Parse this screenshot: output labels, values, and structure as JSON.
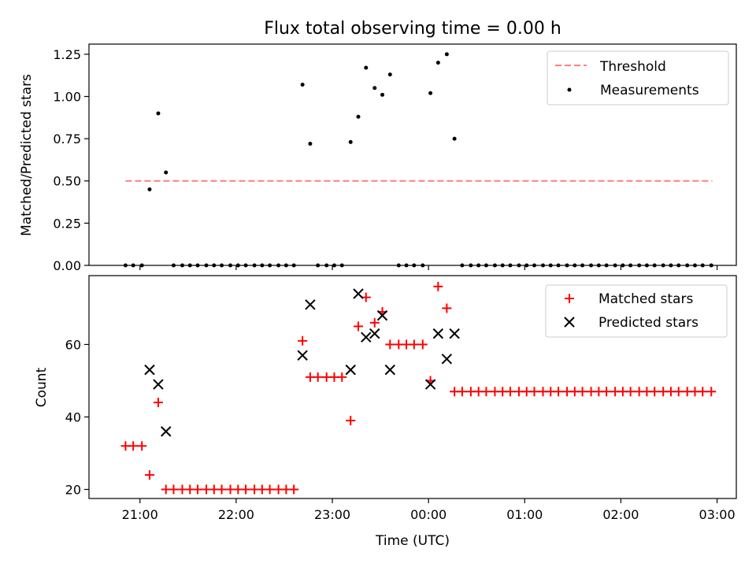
{
  "figure": {
    "title": "Flux total observing time = 0.00 h",
    "xlabel": "Time (UTC)",
    "x_tick_labels": [
      "21:00",
      "22:00",
      "23:00",
      "00:00",
      "01:00",
      "02:00",
      "03:00"
    ]
  },
  "chart_data": [
    {
      "type": "scatter",
      "panel": "top",
      "ylabel": "Matched/Predicted stars",
      "ylim": [
        0,
        1.31
      ],
      "yticks": [
        0,
        0.25,
        0.5,
        0.75,
        1.0,
        1.25
      ],
      "ytick_labels": [
        "0.00",
        "0.25",
        "0.50",
        "0.75",
        "1.00",
        "1.25"
      ],
      "xlim_hours": [
        20.47,
        27.2
      ],
      "legend_position": "top-right",
      "series": [
        {
          "name": "Threshold",
          "kind": "dashed-line",
          "color": "#ff7f7f",
          "x_hours": [
            20.85,
            26.95
          ],
          "values": [
            0.5,
            0.5
          ]
        },
        {
          "name": "Measurements",
          "kind": "point",
          "color": "#000000",
          "x_hours": [
            20.85,
            20.93,
            21.02,
            21.1,
            21.19,
            21.27,
            21.35,
            21.44,
            21.52,
            21.6,
            21.69,
            21.77,
            21.85,
            21.94,
            22.02,
            22.1,
            22.19,
            22.27,
            22.35,
            22.44,
            22.52,
            22.6,
            22.69,
            22.77,
            22.85,
            22.94,
            23.02,
            23.1,
            23.19,
            23.27,
            23.35,
            23.44,
            23.52,
            23.6,
            23.69,
            23.77,
            23.85,
            23.94,
            24.02,
            24.1,
            24.19,
            24.27,
            24.35,
            24.44,
            24.52,
            24.6,
            24.69,
            24.77,
            24.85,
            24.94,
            25.02,
            25.1,
            25.19,
            25.27,
            25.35,
            25.44,
            25.52,
            25.6,
            25.69,
            25.77,
            25.85,
            25.94,
            26.02,
            26.1,
            26.19,
            26.27,
            26.35,
            26.44,
            26.52,
            26.6,
            26.69,
            26.77,
            26.85,
            26.94
          ],
          "values": [
            0,
            0,
            0,
            0.45,
            0.9,
            0.55,
            0,
            0,
            0,
            0,
            0,
            0,
            0,
            0,
            0,
            0,
            0,
            0,
            0,
            0,
            0,
            0,
            1.07,
            0.72,
            0,
            0,
            0,
            0,
            0.73,
            0.88,
            1.17,
            1.05,
            1.01,
            1.13,
            0,
            0,
            0,
            0,
            1.02,
            1.2,
            1.25,
            0.75,
            0,
            0,
            0,
            0,
            0,
            0,
            0,
            0,
            0,
            0,
            0,
            0,
            0,
            0,
            0,
            0,
            0,
            0,
            0,
            0,
            0,
            0,
            0,
            0,
            0,
            0,
            0,
            0,
            0,
            0,
            0,
            0
          ]
        }
      ]
    },
    {
      "type": "scatter",
      "panel": "bottom",
      "ylabel": "Count",
      "ylim": [
        17.5,
        79
      ],
      "yticks": [
        20,
        40,
        60
      ],
      "ytick_labels": [
        "20",
        "40",
        "60"
      ],
      "xlim_hours": [
        20.47,
        27.2
      ],
      "legend_position": "top-right",
      "series": [
        {
          "name": "Matched stars",
          "kind": "plus",
          "color": "#ff0000",
          "x_hours": [
            20.85,
            20.93,
            21.02,
            21.1,
            21.19,
            21.27,
            21.35,
            21.44,
            21.52,
            21.6,
            21.69,
            21.77,
            21.85,
            21.94,
            22.02,
            22.1,
            22.19,
            22.27,
            22.35,
            22.44,
            22.52,
            22.6,
            22.69,
            22.77,
            22.85,
            22.94,
            23.02,
            23.1,
            23.19,
            23.27,
            23.35,
            23.44,
            23.52,
            23.6,
            23.69,
            23.77,
            23.85,
            23.94,
            24.02,
            24.1,
            24.19,
            24.27,
            24.35,
            24.44,
            24.52,
            24.6,
            24.69,
            24.77,
            24.85,
            24.94,
            25.02,
            25.1,
            25.19,
            25.27,
            25.35,
            25.44,
            25.52,
            25.6,
            25.69,
            25.77,
            25.85,
            25.94,
            26.02,
            26.1,
            26.19,
            26.27,
            26.35,
            26.44,
            26.52,
            26.6,
            26.69,
            26.77,
            26.85,
            26.94
          ],
          "values": [
            32,
            32,
            32,
            24,
            44,
            20,
            20,
            20,
            20,
            20,
            20,
            20,
            20,
            20,
            20,
            20,
            20,
            20,
            20,
            20,
            20,
            20,
            61,
            51,
            51,
            51,
            51,
            51,
            39,
            65,
            73,
            66,
            69,
            60,
            60,
            60,
            60,
            60,
            50,
            76,
            70,
            47,
            47,
            47,
            47,
            47,
            47,
            47,
            47,
            47,
            47,
            47,
            47,
            47,
            47,
            47,
            47,
            47,
            47,
            47,
            47,
            47,
            47,
            47,
            47,
            47,
            47,
            47,
            47,
            47,
            47,
            47,
            47,
            47
          ]
        },
        {
          "name": "Predicted stars",
          "kind": "x",
          "color": "#000000",
          "x_hours": [
            21.1,
            21.19,
            21.27,
            22.69,
            22.77,
            23.19,
            23.27,
            23.35,
            23.44,
            23.52,
            23.6,
            24.02,
            24.1,
            24.19,
            24.27
          ],
          "values": [
            53,
            49,
            36,
            57,
            71,
            53,
            74,
            62,
            63,
            68,
            53,
            49,
            63,
            56,
            63
          ]
        }
      ]
    }
  ]
}
